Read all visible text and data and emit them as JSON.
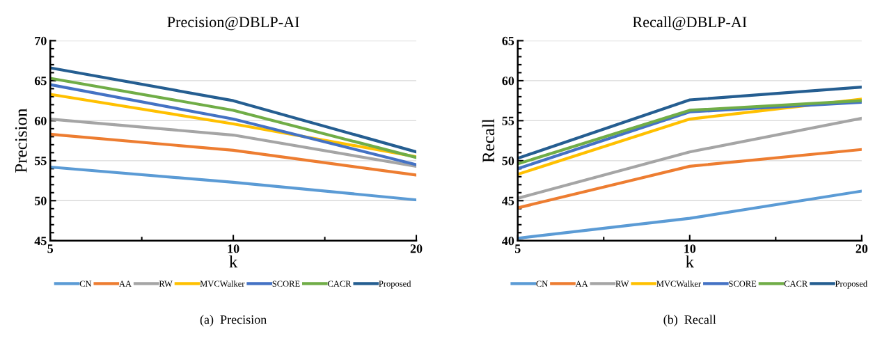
{
  "chart_data": [
    {
      "type": "line",
      "title": "Precision@DBLP-AI",
      "xlabel": "k",
      "ylabel": "Precision",
      "categories": [
        "5",
        "10",
        "20"
      ],
      "ylim": [
        45,
        70
      ],
      "yticks": [
        45,
        50,
        55,
        60,
        65,
        70
      ],
      "grid": "y",
      "legend": "bottom",
      "marker": "none",
      "line_style": "solid",
      "annotations": [
        "(a)  Precision"
      ],
      "series": [
        {
          "name": "CN",
          "color": "#5b9bd5",
          "values": [
            54.2,
            52.3,
            50.1
          ]
        },
        {
          "name": "AA",
          "color": "#ed7d31",
          "values": [
            58.3,
            56.3,
            53.2
          ]
        },
        {
          "name": "RW",
          "color": "#a5a5a5",
          "values": [
            60.2,
            58.2,
            54.3
          ]
        },
        {
          "name": "MVCWalker",
          "color": "#ffc000",
          "values": [
            63.3,
            59.6,
            55.5
          ]
        },
        {
          "name": "SCORE",
          "color": "#4472c4",
          "values": [
            64.5,
            60.2,
            54.5
          ]
        },
        {
          "name": "CACR",
          "color": "#70ad47",
          "values": [
            65.3,
            61.3,
            55.4
          ]
        },
        {
          "name": "Proposed",
          "color": "#255e91",
          "values": [
            66.6,
            62.5,
            56.1
          ]
        }
      ]
    },
    {
      "type": "line",
      "title": "Recall@DBLP-AI",
      "xlabel": "k",
      "ylabel": "Recall",
      "categories": [
        "5",
        "10",
        "20"
      ],
      "ylim": [
        40,
        65
      ],
      "yticks": [
        40,
        45,
        50,
        55,
        60,
        65
      ],
      "grid": "y",
      "legend": "bottom",
      "marker": "none",
      "line_style": "solid",
      "annotations": [
        "(b)  Recall"
      ],
      "series": [
        {
          "name": "CN",
          "color": "#5b9bd5",
          "values": [
            40.3,
            42.8,
            46.2
          ]
        },
        {
          "name": "AA",
          "color": "#ed7d31",
          "values": [
            44.1,
            49.3,
            51.4
          ]
        },
        {
          "name": "RW",
          "color": "#a5a5a5",
          "values": [
            45.3,
            51.1,
            55.3
          ]
        },
        {
          "name": "MVCWalker",
          "color": "#ffc000",
          "values": [
            48.3,
            55.2,
            57.7
          ]
        },
        {
          "name": "SCORE",
          "color": "#4472c4",
          "values": [
            49.0,
            56.1,
            57.3
          ]
        },
        {
          "name": "CACR",
          "color": "#70ad47",
          "values": [
            49.6,
            56.3,
            57.5
          ]
        },
        {
          "name": "Proposed",
          "color": "#255e91",
          "values": [
            50.3,
            57.6,
            59.2
          ]
        }
      ]
    }
  ]
}
